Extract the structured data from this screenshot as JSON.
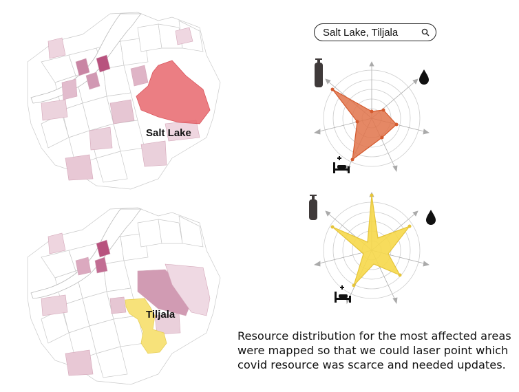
{
  "search": {
    "value": "Salt Lake, Tiljala",
    "icon": "search-icon"
  },
  "maps": {
    "top": {
      "area_label": "Salt Lake",
      "highlight_color": "#e8676d"
    },
    "bottom": {
      "area_label": "Tiljala",
      "highlight_color": "#f7e27a"
    }
  },
  "radars": {
    "top": {
      "fill": "#e0734a",
      "icons": [
        "oxygen-cylinder-icon",
        "water-drop-icon",
        "hospital-bed-icon"
      ]
    },
    "bottom": {
      "fill": "#f6d84a",
      "icons": [
        "oxygen-cylinder-icon",
        "water-drop-icon",
        "hospital-bed-icon"
      ]
    }
  },
  "caption": {
    "line1": "Resource distribution for the most affected areas",
    "line2": "were mapped so that we could laser point which",
    "line3": "covid resource was scarce and needed updates."
  }
}
